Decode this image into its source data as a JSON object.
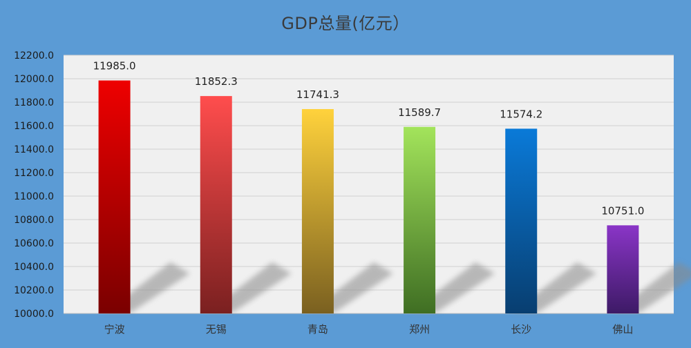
{
  "chart_data": {
    "type": "bar",
    "title": "GDP总量(亿元）",
    "xlabel": "",
    "ylabel": "",
    "categories": [
      "宁波",
      "无锡",
      "青岛",
      "郑州",
      "长沙",
      "佛山"
    ],
    "values": [
      11985.0,
      11852.3,
      11741.3,
      11589.7,
      11574.2,
      10751.0
    ],
    "data_labels": [
      "11985.0",
      "11852.3",
      "11741.3",
      "11589.7",
      "11574.2",
      "10751.0"
    ],
    "ylim": [
      10000,
      12200
    ],
    "yticks": [
      10000,
      10200,
      10400,
      10600,
      10800,
      11000,
      11200,
      11400,
      11600,
      11800,
      12000,
      12200
    ],
    "ytick_labels": [
      "10000.0",
      "10200.0",
      "10400.0",
      "10600.0",
      "10800.0",
      "11000.0",
      "11200.0",
      "11400.0",
      "11600.0",
      "11800.0",
      "12000.0",
      "12200.0"
    ],
    "grid": true,
    "legend": "none",
    "colors": {
      "frame_background": "#5b9bd5",
      "plot_background": "#f0f0f0",
      "gridline": "#d0d0d0",
      "bars": [
        [
          "#ee0000",
          "#7a0000"
        ],
        [
          "#ff4d4d",
          "#7a2020"
        ],
        [
          "#ffd23c",
          "#7a6020"
        ],
        [
          "#a3e45b",
          "#3f6e23"
        ],
        [
          "#0a7ad8",
          "#083e70"
        ],
        [
          "#8a35c7",
          "#3d1a66"
        ]
      ]
    }
  }
}
